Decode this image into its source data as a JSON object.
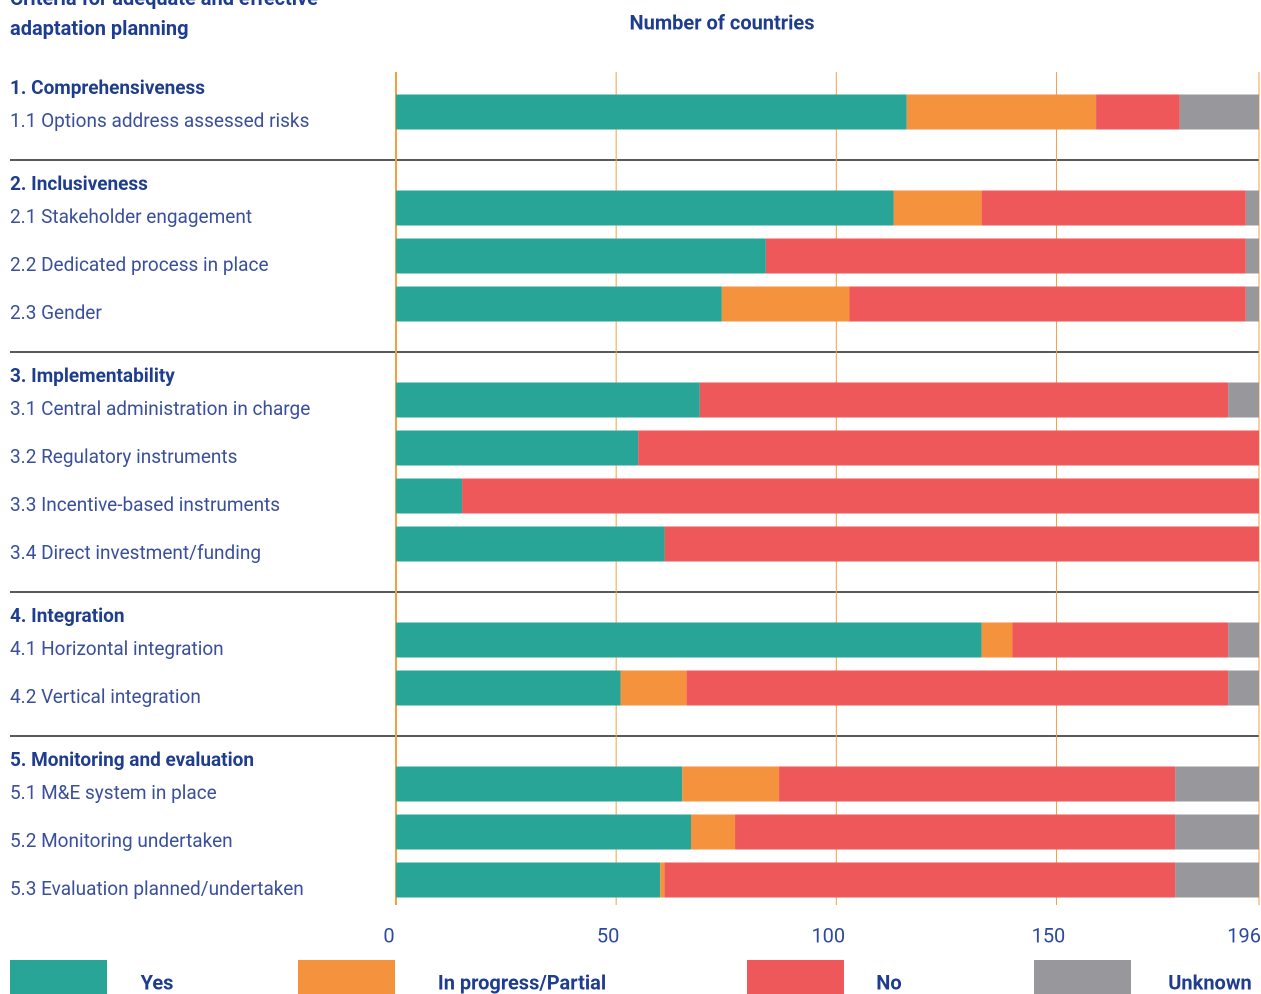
{
  "chart_data": {
    "type": "stacked-bar-horizontal",
    "ylabel": "Criteria for adequate and effective adaptation planning",
    "xlabel": "Number of countries",
    "groups": [
      {
        "name": "1. Comprehensiveness",
        "categories": [
          "1.1 Options address assessed risks"
        ]
      },
      {
        "name": "2. Inclusiveness",
        "categories": [
          "2.1 Stakeholder engagement",
          "2.2 Dedicated process in place",
          "2.3 Gender"
        ]
      },
      {
        "name": "3. Implementability",
        "categories": [
          "3.1 Central administration in charge",
          "3.2 Regulatory instruments",
          "3.3 Incentive-based instruments",
          "3.4 Direct investment/funding"
        ]
      },
      {
        "name": "4. Integration",
        "categories": [
          "4.1 Horizontal integration",
          "4.2 Vertical integration"
        ]
      },
      {
        "name": "5. Monitoring and evaluation",
        "categories": [
          "5.1 M&E system in place",
          "5.2 Monitoring undertaken",
          "5.3 Evaluation planned/undertaken"
        ]
      }
    ],
    "series": [
      {
        "name": "Yes",
        "color": "#29a598",
        "values": [
          116,
          113,
          84,
          74,
          69,
          55,
          15,
          61,
          133,
          51,
          65,
          67,
          60
        ]
      },
      {
        "name": "In progress/Partial",
        "color": "#f5923e",
        "values": [
          43,
          20,
          0,
          29,
          0,
          0,
          0,
          0,
          7,
          15,
          22,
          10,
          1
        ]
      },
      {
        "name": "No",
        "color": "#ef585a",
        "values": [
          19,
          60,
          109,
          90,
          120,
          141,
          181,
          135,
          49,
          123,
          90,
          100,
          116
        ]
      },
      {
        "name": "Unknown",
        "color": "#98979b",
        "values": [
          18,
          3,
          3,
          3,
          7,
          0,
          0,
          0,
          7,
          7,
          19,
          19,
          19
        ]
      }
    ],
    "xlim": [
      0,
      196
    ],
    "xticks": [
      0,
      50,
      100,
      150,
      196
    ],
    "grid": true,
    "legend": "bottom"
  }
}
